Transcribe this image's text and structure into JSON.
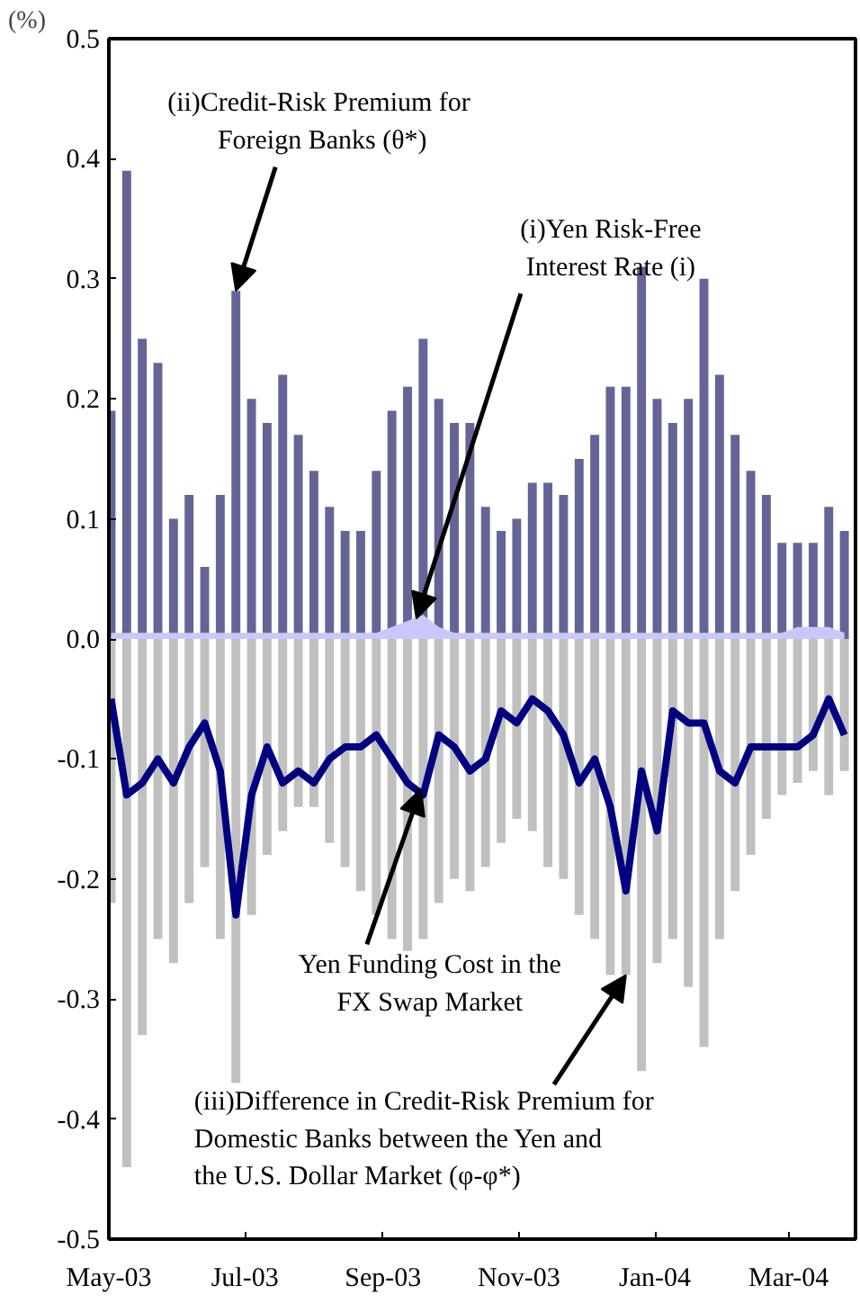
{
  "chart_data": {
    "type": "bar",
    "ylabel": "(%)",
    "x": [
      "2003-05-02",
      "2003-05-09",
      "2003-05-16",
      "2003-05-23",
      "2003-05-30",
      "2003-06-06",
      "2003-06-13",
      "2003-06-20",
      "2003-06-27",
      "2003-07-04",
      "2003-07-11",
      "2003-07-18",
      "2003-07-25",
      "2003-08-01",
      "2003-08-08",
      "2003-08-15",
      "2003-08-22",
      "2003-08-29",
      "2003-09-05",
      "2003-09-12",
      "2003-09-19",
      "2003-09-26",
      "2003-10-03",
      "2003-10-10",
      "2003-10-17",
      "2003-10-24",
      "2003-10-31",
      "2003-11-07",
      "2003-11-14",
      "2003-11-21",
      "2003-11-28",
      "2003-12-05",
      "2003-12-12",
      "2003-12-19",
      "2003-12-26",
      "2004-01-02",
      "2004-01-09",
      "2004-01-16",
      "2004-01-23",
      "2004-01-30",
      "2004-02-06",
      "2004-02-13",
      "2004-02-20",
      "2004-02-27",
      "2004-03-05",
      "2004-03-12",
      "2004-03-19",
      "2004-03-26"
    ],
    "series": [
      {
        "color": "#646496",
        "values": [
          0.19,
          0.39,
          0.25,
          0.23,
          0.1,
          0.12,
          0.06,
          0.12,
          0.29,
          0.2,
          0.18,
          0.22,
          0.17,
          0.14,
          0.11,
          0.09,
          0.09,
          0.14,
          0.19,
          0.21,
          0.25,
          0.2,
          0.18,
          0.18,
          0.11,
          0.09,
          0.1,
          0.13,
          0.13,
          0.12,
          0.15,
          0.17,
          0.21,
          0.21,
          0.31,
          0.2,
          0.18,
          0.2,
          0.3,
          0.22,
          0.17,
          0.14,
          0.12,
          0.08,
          0.08,
          0.08,
          0.11,
          0.09
        ]
      },
      {
        "type": "area",
        "color": "#c8c8ff",
        "values": [
          0.005,
          0.005,
          0.005,
          0.005,
          0.005,
          0.005,
          0.005,
          0.005,
          0.005,
          0.005,
          0.005,
          0.005,
          0.005,
          0.005,
          0.005,
          0.005,
          0.005,
          0.005,
          0.01,
          0.015,
          0.02,
          0.01,
          0.005,
          0.005,
          0.005,
          0.005,
          0.005,
          0.005,
          0.005,
          0.005,
          0.005,
          0.005,
          0.005,
          0.005,
          0.005,
          0.005,
          0.005,
          0.005,
          0.005,
          0.005,
          0.005,
          0.005,
          0.005,
          0.005,
          0.01,
          0.01,
          0.01,
          0.005
        ]
      },
      {
        "color": "#c0c0c0",
        "values": [
          -0.22,
          -0.44,
          -0.33,
          -0.25,
          -0.27,
          -0.22,
          -0.19,
          -0.25,
          -0.37,
          -0.23,
          -0.18,
          -0.16,
          -0.14,
          -0.14,
          -0.17,
          -0.19,
          -0.21,
          -0.23,
          -0.25,
          -0.26,
          -0.25,
          -0.22,
          -0.2,
          -0.21,
          -0.19,
          -0.17,
          -0.15,
          -0.16,
          -0.19,
          -0.2,
          -0.23,
          -0.25,
          -0.28,
          -0.28,
          -0.36,
          -0.27,
          -0.25,
          -0.29,
          -0.34,
          -0.25,
          -0.21,
          -0.18,
          -0.15,
          -0.13,
          -0.12,
          -0.11,
          -0.13,
          -0.11
        ]
      },
      {
        "type": "line",
        "color": "#000080",
        "values": [
          -0.05,
          -0.13,
          -0.12,
          -0.1,
          -0.12,
          -0.09,
          -0.07,
          -0.11,
          -0.23,
          -0.13,
          -0.09,
          -0.12,
          -0.11,
          -0.12,
          -0.1,
          -0.09,
          -0.09,
          -0.08,
          -0.1,
          -0.12,
          -0.13,
          -0.08,
          -0.09,
          -0.11,
          -0.1,
          -0.06,
          -0.07,
          -0.05,
          -0.06,
          -0.08,
          -0.12,
          -0.1,
          -0.14,
          -0.21,
          -0.11,
          -0.16,
          -0.06,
          -0.07,
          -0.07,
          -0.11,
          -0.12,
          -0.09,
          -0.09,
          -0.09,
          -0.09,
          -0.08,
          -0.05,
          -0.08
        ]
      }
    ],
    "xlim": [
      "2003-05-01",
      "2004-03-31"
    ],
    "xticks": [
      {
        "value": "2003-05-01",
        "label": "May-03"
      },
      {
        "value": "2003-07-01",
        "label": "Jul-03"
      },
      {
        "value": "2003-09-01",
        "label": "Sep-03"
      },
      {
        "value": "2003-11-01",
        "label": "Nov-03"
      },
      {
        "value": "2004-01-01",
        "label": "Jan-04"
      },
      {
        "value": "2004-03-01",
        "label": "Mar-04"
      }
    ],
    "ylim": [
      -0.5,
      0.5
    ],
    "yticks": [
      -0.5,
      -0.4,
      -0.3,
      -0.2,
      -0.1,
      {
        "value": 0,
        "label": "0.0"
      },
      0.1,
      0.2,
      0.3,
      0.4,
      0.5
    ],
    "annotations": [
      {
        "text": "(ii)Credit-Risk Premium  for\nForeign Banks (θ*)",
        "x": "2003-06-27",
        "y": 0.29
      },
      {
        "text": "(i)Yen Risk-Free\nInterest Rate (i)",
        "x": "2003-09-16",
        "y": 0.017
      },
      {
        "text": "Yen Funding Cost in the\nFX Swap Market",
        "x": "2003-09-18",
        "y": -0.125
      },
      {
        "text": "(iii)Difference in Credit-Risk Premium for\nDomestic Banks between the Yen and\nthe U.S. Dollar Market (φ-φ*)",
        "x": "2003-12-19",
        "y": -0.28
      }
    ],
    "line_style": "solid",
    "stacked": true,
    "grid": false
  }
}
